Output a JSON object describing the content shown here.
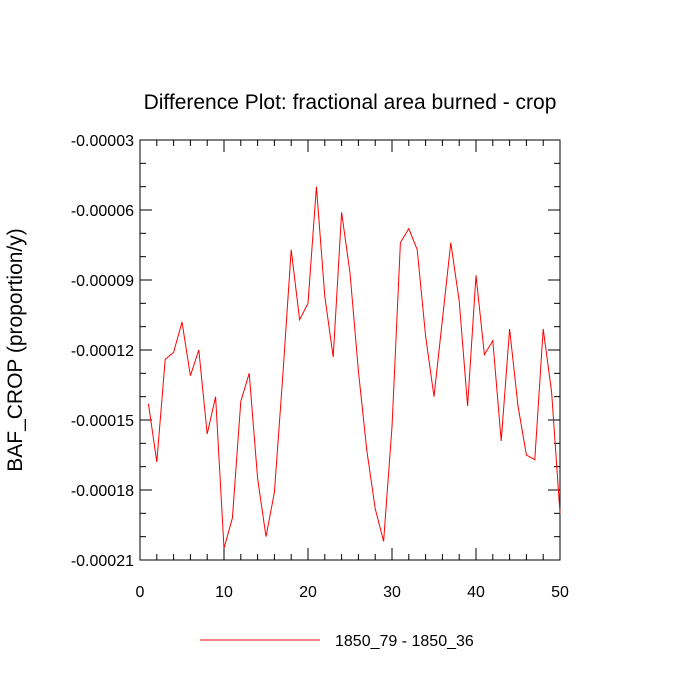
{
  "chart_data": {
    "type": "line",
    "title": "Difference Plot: fractional area burned - crop",
    "xlabel": "",
    "ylabel": "BAF_CROP  (proportion/y)",
    "xlim": [
      0,
      50
    ],
    "ylim": [
      -0.00021,
      -3e-05
    ],
    "x_ticks": [
      0,
      10,
      20,
      30,
      40,
      50
    ],
    "x_tick_labels": [
      "0",
      "10",
      "20",
      "30",
      "40",
      "50"
    ],
    "y_ticks": [
      -3e-05,
      -6e-05,
      -9e-05,
      -0.00012,
      -0.00015,
      -0.00018,
      -0.00021
    ],
    "y_tick_labels": [
      "-0.00003",
      "-0.00006",
      "-0.00009",
      "-0.00012",
      "-0.00015",
      "-0.00018",
      "-0.00021"
    ],
    "grid": false,
    "legend_position": "bottom-center",
    "series": [
      {
        "name": "1850_79 - 1850_36",
        "color": "#ff0000",
        "x": [
          1,
          2,
          3,
          4,
          5,
          6,
          7,
          8,
          9,
          10,
          11,
          12,
          13,
          14,
          15,
          16,
          17,
          18,
          19,
          20,
          21,
          22,
          23,
          24,
          25,
          26,
          27,
          28,
          29,
          30,
          31,
          32,
          33,
          34,
          35,
          36,
          37,
          38,
          39,
          40,
          41,
          42,
          43,
          44,
          45,
          46,
          47,
          48,
          49,
          50
        ],
        "y": [
          -0.000143,
          -0.000168,
          -0.000124,
          -0.000121,
          -0.000108,
          -0.000131,
          -0.00012,
          -0.000156,
          -0.00014,
          -0.000205,
          -0.000192,
          -0.000142,
          -0.00013,
          -0.000175,
          -0.0002,
          -0.000181,
          -0.000131,
          -7.7e-05,
          -0.000107,
          -0.0001,
          -5e-05,
          -9.7e-05,
          -0.000123,
          -6.1e-05,
          -8.7e-05,
          -0.000129,
          -0.000163,
          -0.000188,
          -0.000202,
          -0.000153,
          -7.4e-05,
          -6.8e-05,
          -7.7e-05,
          -0.000114,
          -0.00014,
          -0.000107,
          -7.4e-05,
          -9.9e-05,
          -0.000144,
          -8.8e-05,
          -0.000122,
          -0.000116,
          -0.000159,
          -0.000111,
          -0.000144,
          -0.000165,
          -0.000167,
          -0.000111,
          -0.000138,
          -0.00019
        ]
      }
    ]
  }
}
